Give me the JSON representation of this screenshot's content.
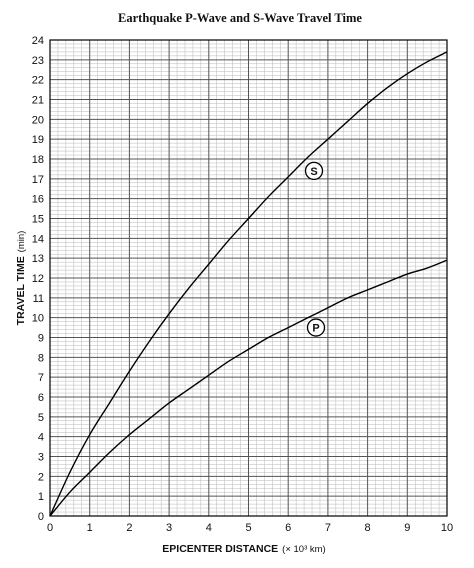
{
  "chart_data": {
    "type": "line",
    "title": "Earthquake P-Wave and S-Wave Travel Time",
    "xlabel": "EPICENTER DISTANCE",
    "xlabel_unit": "(× 10³ km)",
    "ylabel": "TRAVEL TIME",
    "ylabel_unit": "(min)",
    "xlim": [
      0,
      10
    ],
    "ylim": [
      0,
      24
    ],
    "x_major_step": 1,
    "x_minor_step": 0.2,
    "y_major_step": 1,
    "y_minor_step": 0.2,
    "grid": true,
    "x_ticks": [
      "0",
      "1",
      "2",
      "3",
      "4",
      "5",
      "6",
      "7",
      "8",
      "9",
      "10"
    ],
    "y_ticks": [
      "0",
      "1",
      "2",
      "3",
      "4",
      "5",
      "6",
      "7",
      "8",
      "9",
      "10",
      "11",
      "12",
      "13",
      "14",
      "15",
      "16",
      "17",
      "18",
      "19",
      "20",
      "21",
      "22",
      "23",
      "24"
    ],
    "series": [
      {
        "name": "S",
        "x": [
          0,
          0.5,
          1,
          1.5,
          2,
          2.5,
          3,
          3.5,
          4,
          4.5,
          5,
          5.5,
          6,
          6.5,
          7,
          7.5,
          8,
          8.5,
          9,
          9.5,
          10
        ],
        "y": [
          0,
          2.2,
          4.1,
          5.7,
          7.3,
          8.8,
          10.2,
          11.5,
          12.7,
          13.9,
          15.0,
          16.1,
          17.1,
          18.1,
          19.0,
          19.9,
          20.8,
          21.6,
          22.3,
          22.9,
          23.4
        ]
      },
      {
        "name": "P",
        "x": [
          0,
          0.5,
          1,
          1.5,
          2,
          2.5,
          3,
          3.5,
          4,
          4.5,
          5,
          5.5,
          6,
          6.5,
          7,
          7.5,
          8,
          8.5,
          9,
          9.5,
          10
        ],
        "y": [
          0,
          1.2,
          2.2,
          3.2,
          4.1,
          4.9,
          5.7,
          6.4,
          7.1,
          7.8,
          8.4,
          9.0,
          9.5,
          10.0,
          10.5,
          11.0,
          11.4,
          11.8,
          12.2,
          12.5,
          12.9
        ]
      }
    ],
    "annotations": [
      {
        "text": "S",
        "x": 6.65,
        "y": 17.4
      },
      {
        "text": "P",
        "x": 6.7,
        "y": 9.5
      }
    ],
    "colors": {
      "curve": "#000000",
      "major_grid": "#555555",
      "minor_grid": "#b8b8b8",
      "frame": "#000000"
    }
  }
}
